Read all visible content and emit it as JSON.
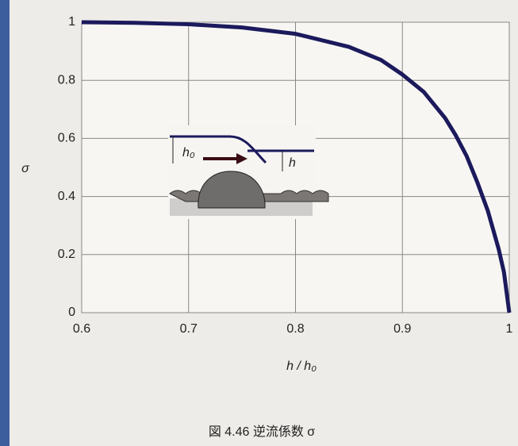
{
  "chart_data": {
    "type": "line",
    "xlabel": "h / h₀",
    "ylabel": "σ",
    "caption": "図 4.46 逆流係数 σ",
    "inset_labels": [
      "h₀",
      "h"
    ],
    "x": [
      0.6,
      0.65,
      0.7,
      0.75,
      0.8,
      0.85,
      0.88,
      0.9,
      0.92,
      0.94,
      0.95,
      0.96,
      0.97,
      0.98,
      0.99,
      0.995,
      1.0
    ],
    "series": [
      {
        "color": "#1c1a5c",
        "values": [
          1,
          0.998,
          0.993,
          0.982,
          0.96,
          0.915,
          0.87,
          0.82,
          0.76,
          0.67,
          0.61,
          0.54,
          0.45,
          0.35,
          0.22,
          0.14,
          0
        ]
      }
    ],
    "xlim": [
      0.6,
      1
    ],
    "xticks": [
      0.6,
      0.7,
      0.8,
      0.9,
      1
    ],
    "ylim": [
      0,
      1
    ],
    "yticks": [
      0,
      0.2,
      0.4,
      0.6,
      0.8,
      1
    ],
    "grid": true
  }
}
